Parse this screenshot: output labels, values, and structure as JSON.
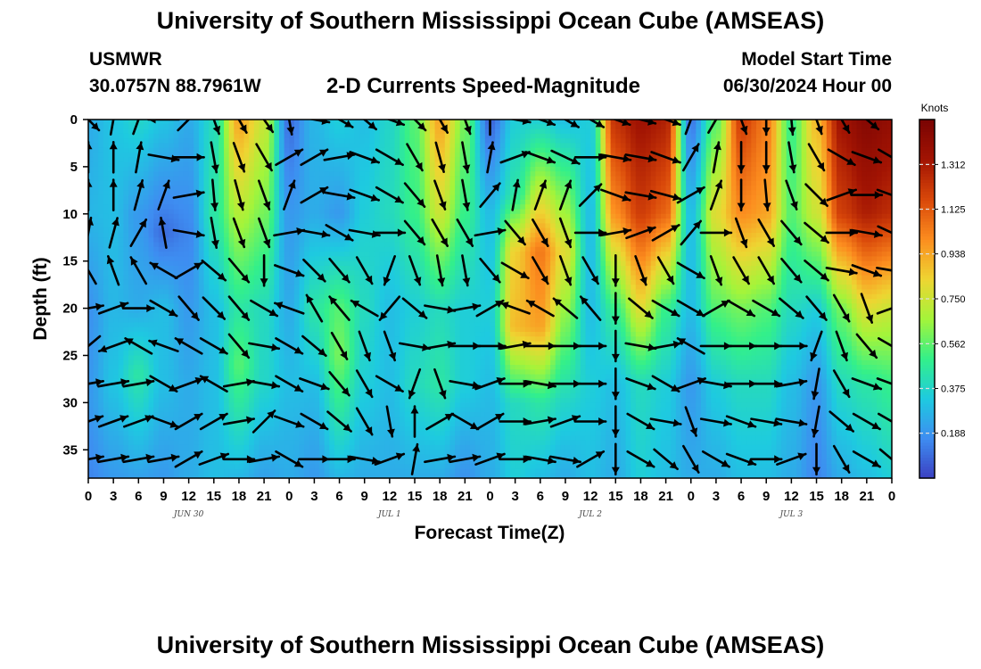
{
  "header": {
    "title": "University of Southern Mississippi Ocean Cube (AMSEAS)",
    "station": "USMWR",
    "coords": "30.0757N  88.7961W",
    "subtitle": "2-D Currents Speed-Magnitude",
    "model_start_label": "Model Start Time",
    "model_start_value": "06/30/2024 Hour 00",
    "footer_title": "University of Southern Mississippi Ocean Cube (AMSEAS)"
  },
  "chart_data": {
    "type": "heatmap",
    "title": "2-D Currents Speed-Magnitude",
    "xlabel": "Forecast Time(Z)",
    "ylabel": "Depth (ft)",
    "x_unit": "hours from 06/30/2024 00Z",
    "xlim": [
      0,
      96
    ],
    "ylim": [
      0,
      38
    ],
    "y_inverted": true,
    "x_tick_labels": [
      "0",
      "3",
      "6",
      "9",
      "12",
      "15",
      "18",
      "21",
      "0",
      "3",
      "6",
      "9",
      "12",
      "15",
      "18",
      "21",
      "0",
      "3",
      "6",
      "9",
      "12",
      "15",
      "18",
      "21",
      "0",
      "3",
      "6",
      "9",
      "12",
      "15",
      "18",
      "21",
      "0"
    ],
    "y_ticks": [
      0,
      5,
      10,
      15,
      20,
      25,
      30,
      35
    ],
    "date_labels": [
      {
        "hour": 12,
        "label": "JUN 30"
      },
      {
        "hour": 36,
        "label": "JUL 1"
      },
      {
        "hour": 60,
        "label": "JUL 2"
      },
      {
        "hour": 84,
        "label": "JUL 3"
      }
    ],
    "colorbar": {
      "title": "Knots",
      "range": [
        0,
        1.5
      ],
      "ticks": [
        "1.312",
        "1.125",
        "0.938",
        "0.750",
        "0.562",
        "0.375",
        "0.188"
      ],
      "tick_values": [
        1.312,
        1.125,
        0.938,
        0.75,
        0.562,
        0.375,
        0.188
      ],
      "colormap": [
        "#3b3fc1",
        "#3e8df1",
        "#1ecae0",
        "#33f08a",
        "#a4f43a",
        "#eed532",
        "#fc8d1f",
        "#d9480a",
        "#a21403",
        "#7a0403"
      ]
    },
    "columns": [
      {
        "hour": 0,
        "profile": [
          [
            0,
            0.25
          ],
          [
            10,
            0.28
          ],
          [
            20,
            0.18
          ],
          [
            30,
            0.2
          ],
          [
            38,
            0.15
          ]
        ]
      },
      {
        "hour": 3,
        "profile": [
          [
            0,
            0.32
          ],
          [
            10,
            0.3
          ],
          [
            20,
            0.28
          ],
          [
            28,
            0.32
          ],
          [
            38,
            0.2
          ]
        ]
      },
      {
        "hour": 6,
        "profile": [
          [
            0,
            0.38
          ],
          [
            10,
            0.2
          ],
          [
            20,
            0.25
          ],
          [
            27,
            0.45
          ],
          [
            38,
            0.22
          ]
        ]
      },
      {
        "hour": 9,
        "profile": [
          [
            0,
            0.32
          ],
          [
            12,
            0.1
          ],
          [
            20,
            0.3
          ],
          [
            28,
            0.3
          ],
          [
            38,
            0.2
          ]
        ]
      },
      {
        "hour": 12,
        "profile": [
          [
            0,
            0.25
          ],
          [
            12,
            0.15
          ],
          [
            20,
            0.2
          ],
          [
            28,
            0.25
          ],
          [
            38,
            0.25
          ]
        ]
      },
      {
        "hour": 15,
        "profile": [
          [
            0,
            0.4
          ],
          [
            10,
            0.45
          ],
          [
            20,
            0.3
          ],
          [
            28,
            0.3
          ],
          [
            38,
            0.3
          ]
        ]
      },
      {
        "hour": 18,
        "profile": [
          [
            0,
            0.95
          ],
          [
            10,
            0.7
          ],
          [
            20,
            0.45
          ],
          [
            26,
            0.55
          ],
          [
            38,
            0.28
          ]
        ]
      },
      {
        "hour": 21,
        "profile": [
          [
            0,
            0.75
          ],
          [
            10,
            0.6
          ],
          [
            20,
            0.4
          ],
          [
            28,
            0.38
          ],
          [
            38,
            0.22
          ]
        ]
      },
      {
        "hour": 24,
        "profile": [
          [
            0,
            0.1
          ],
          [
            10,
            0.2
          ],
          [
            20,
            0.25
          ],
          [
            28,
            0.3
          ],
          [
            38,
            0.25
          ]
        ]
      },
      {
        "hour": 27,
        "profile": [
          [
            0,
            0.28
          ],
          [
            10,
            0.25
          ],
          [
            20,
            0.45
          ],
          [
            28,
            0.3
          ],
          [
            38,
            0.2
          ]
        ]
      },
      {
        "hour": 30,
        "profile": [
          [
            0,
            0.35
          ],
          [
            10,
            0.2
          ],
          [
            20,
            0.55
          ],
          [
            25,
            0.6
          ],
          [
            38,
            0.28
          ]
        ]
      },
      {
        "hour": 33,
        "profile": [
          [
            0,
            0.3
          ],
          [
            10,
            0.35
          ],
          [
            20,
            0.4
          ],
          [
            28,
            0.35
          ],
          [
            38,
            0.25
          ]
        ]
      },
      {
        "hour": 36,
        "profile": [
          [
            0,
            0.38
          ],
          [
            10,
            0.4
          ],
          [
            20,
            0.3
          ],
          [
            28,
            0.3
          ],
          [
            38,
            0.25
          ]
        ]
      },
      {
        "hour": 39,
        "profile": [
          [
            0,
            0.55
          ],
          [
            10,
            0.5
          ],
          [
            20,
            0.35
          ],
          [
            28,
            0.4
          ],
          [
            38,
            0.25
          ]
        ]
      },
      {
        "hour": 42,
        "profile": [
          [
            0,
            0.95
          ],
          [
            10,
            0.75
          ],
          [
            20,
            0.4
          ],
          [
            28,
            0.45
          ],
          [
            38,
            0.25
          ]
        ]
      },
      {
        "hour": 45,
        "profile": [
          [
            0,
            0.6
          ],
          [
            10,
            0.5
          ],
          [
            20,
            0.35
          ],
          [
            28,
            0.35
          ],
          [
            38,
            0.18
          ]
        ]
      },
      {
        "hour": 48,
        "profile": [
          [
            0,
            0.08
          ],
          [
            10,
            0.3
          ],
          [
            20,
            0.35
          ],
          [
            28,
            0.3
          ],
          [
            38,
            0.25
          ]
        ]
      },
      {
        "hour": 51,
        "profile": [
          [
            0,
            0.35
          ],
          [
            8,
            0.45
          ],
          [
            14,
            0.85
          ],
          [
            22,
            0.9
          ],
          [
            30,
            0.4
          ],
          [
            38,
            0.35
          ]
        ]
      },
      {
        "hour": 54,
        "profile": [
          [
            0,
            0.35
          ],
          [
            8,
            0.75
          ],
          [
            14,
            1.05
          ],
          [
            22,
            0.95
          ],
          [
            30,
            0.45
          ],
          [
            38,
            0.3
          ]
        ]
      },
      {
        "hour": 57,
        "profile": [
          [
            0,
            0.3
          ],
          [
            8,
            0.6
          ],
          [
            14,
            0.8
          ],
          [
            22,
            0.6
          ],
          [
            30,
            0.38
          ],
          [
            38,
            0.25
          ]
        ]
      },
      {
        "hour": 60,
        "profile": [
          [
            0,
            0.35
          ],
          [
            10,
            0.3
          ],
          [
            20,
            0.3
          ],
          [
            28,
            0.35
          ],
          [
            38,
            0.3
          ]
        ]
      },
      {
        "hour": 63,
        "profile": [
          [
            0,
            1.25
          ],
          [
            10,
            1.0
          ],
          [
            20,
            0.5
          ],
          [
            28,
            0.3
          ],
          [
            38,
            0.25
          ]
        ]
      },
      {
        "hour": 66,
        "profile": [
          [
            0,
            1.35
          ],
          [
            10,
            1.2
          ],
          [
            20,
            0.8
          ],
          [
            28,
            0.4
          ],
          [
            38,
            0.35
          ]
        ]
      },
      {
        "hour": 69,
        "profile": [
          [
            0,
            1.3
          ],
          [
            10,
            1.1
          ],
          [
            20,
            0.5
          ],
          [
            28,
            0.35
          ],
          [
            38,
            0.3
          ]
        ]
      },
      {
        "hour": 72,
        "profile": [
          [
            0,
            0.12
          ],
          [
            10,
            0.3
          ],
          [
            20,
            0.3
          ],
          [
            28,
            0.2
          ],
          [
            38,
            0.25
          ]
        ]
      },
      {
        "hour": 75,
        "profile": [
          [
            0,
            0.55
          ],
          [
            10,
            0.8
          ],
          [
            20,
            0.55
          ],
          [
            28,
            0.35
          ],
          [
            38,
            0.25
          ]
        ]
      },
      {
        "hour": 78,
        "profile": [
          [
            0,
            1.2
          ],
          [
            10,
            1.0
          ],
          [
            20,
            0.6
          ],
          [
            28,
            0.4
          ],
          [
            38,
            0.3
          ]
        ]
      },
      {
        "hour": 81,
        "profile": [
          [
            0,
            1.05
          ],
          [
            10,
            0.95
          ],
          [
            20,
            0.55
          ],
          [
            28,
            0.4
          ],
          [
            38,
            0.3
          ]
        ]
      },
      {
        "hour": 84,
        "profile": [
          [
            0,
            0.5
          ],
          [
            10,
            0.55
          ],
          [
            20,
            0.4
          ],
          [
            28,
            0.3
          ],
          [
            38,
            0.25
          ]
        ]
      },
      {
        "hour": 87,
        "profile": [
          [
            0,
            0.9
          ],
          [
            10,
            0.75
          ],
          [
            20,
            0.35
          ],
          [
            28,
            0.2
          ],
          [
            38,
            0.15
          ]
        ]
      },
      {
        "hour": 90,
        "profile": [
          [
            0,
            1.35
          ],
          [
            10,
            1.2
          ],
          [
            20,
            0.6
          ],
          [
            28,
            0.4
          ],
          [
            38,
            0.25
          ]
        ]
      },
      {
        "hour": 93,
        "profile": [
          [
            0,
            1.45
          ],
          [
            10,
            1.3
          ],
          [
            20,
            0.8
          ],
          [
            28,
            0.45
          ],
          [
            38,
            0.3
          ]
        ]
      },
      {
        "hour": 96,
        "profile": [
          [
            0,
            1.4
          ],
          [
            10,
            1.25
          ],
          [
            20,
            0.75
          ],
          [
            28,
            0.5
          ],
          [
            38,
            0.35
          ]
        ]
      }
    ],
    "vectors": {
      "depths": [
        0,
        4,
        8,
        12,
        16,
        20,
        24,
        28,
        32,
        36
      ],
      "hours": [
        0,
        3,
        6,
        9,
        12,
        15,
        18,
        21,
        24,
        27,
        30,
        33,
        36,
        39,
        42,
        45,
        48,
        51,
        54,
        57,
        60,
        63,
        66,
        69,
        72,
        75,
        78,
        81,
        84,
        87,
        90,
        93,
        96
      ],
      "directions_deg": [
        [
          135,
          10,
          20,
          270,
          45,
          160,
          150,
          145,
          170,
          100,
          120,
          130,
          110,
          135,
          150,
          160,
          0,
          100,
          110,
          120,
          120,
          110,
          105,
          110,
          20,
          30,
          160,
          180,
          175,
          160,
          150,
          130,
          120
        ],
        [
          0,
          0,
          10,
          100,
          90,
          170,
          160,
          150,
          60,
          60,
          80,
          110,
          120,
          150,
          165,
          170,
          10,
          70,
          110,
          115,
          90,
          100,
          100,
          110,
          30,
          10,
          180,
          180,
          170,
          150,
          120,
          110,
          120
        ],
        [
          0,
          0,
          15,
          20,
          80,
          175,
          165,
          160,
          20,
          60,
          100,
          110,
          120,
          140,
          160,
          170,
          40,
          10,
          20,
          20,
          45,
          110,
          100,
          105,
          60,
          20,
          180,
          175,
          160,
          135,
          70,
          90,
          110
        ],
        [
          10,
          15,
          30,
          350,
          100,
          170,
          160,
          160,
          80,
          100,
          120,
          100,
          90,
          140,
          150,
          150,
          80,
          140,
          150,
          160,
          90,
          80,
          70,
          60,
          40,
          90,
          160,
          150,
          140,
          130,
          90,
          100,
          115
        ],
        [
          330,
          340,
          330,
          300,
          60,
          130,
          140,
          180,
          110,
          135,
          140,
          150,
          200,
          160,
          170,
          170,
          140,
          120,
          150,
          160,
          150,
          180,
          160,
          150,
          120,
          160,
          150,
          150,
          140,
          130,
          100,
          110,
          100
        ],
        [
          80,
          70,
          90,
          120,
          140,
          135,
          140,
          120,
          290,
          330,
          320,
          300,
          220,
          130,
          100,
          80,
          60,
          290,
          300,
          310,
          320,
          180,
          130,
          120,
          120,
          60,
          120,
          120,
          130,
          140,
          150,
          160,
          70
        ],
        [
          230,
          250,
          300,
          290,
          300,
          120,
          140,
          100,
          120,
          130,
          150,
          160,
          160,
          100,
          80,
          90,
          90,
          80,
          90,
          90,
          90,
          180,
          100,
          80,
          300,
          90,
          90,
          90,
          90,
          200,
          160,
          140,
          120
        ],
        [
          80,
          80,
          80,
          120,
          70,
          300,
          80,
          100,
          120,
          110,
          140,
          150,
          120,
          200,
          160,
          100,
          70,
          90,
          100,
          90,
          90,
          180,
          110,
          120,
          70,
          100,
          90,
          90,
          80,
          190,
          150,
          110,
          110
        ],
        [
          70,
          70,
          70,
          110,
          60,
          60,
          80,
          45,
          110,
          120,
          130,
          150,
          170,
          0,
          60,
          120,
          60,
          90,
          80,
          70,
          90,
          180,
          120,
          100,
          160,
          100,
          110,
          100,
          100,
          190,
          130,
          120,
          120
        ],
        [
          80,
          80,
          80,
          80,
          60,
          70,
          90,
          80,
          120,
          90,
          90,
          100,
          70,
          10,
          80,
          80,
          70,
          90,
          100,
          100,
          60,
          180,
          120,
          130,
          150,
          120,
          110,
          90,
          70,
          180,
          150,
          120,
          130
        ]
      ]
    }
  }
}
